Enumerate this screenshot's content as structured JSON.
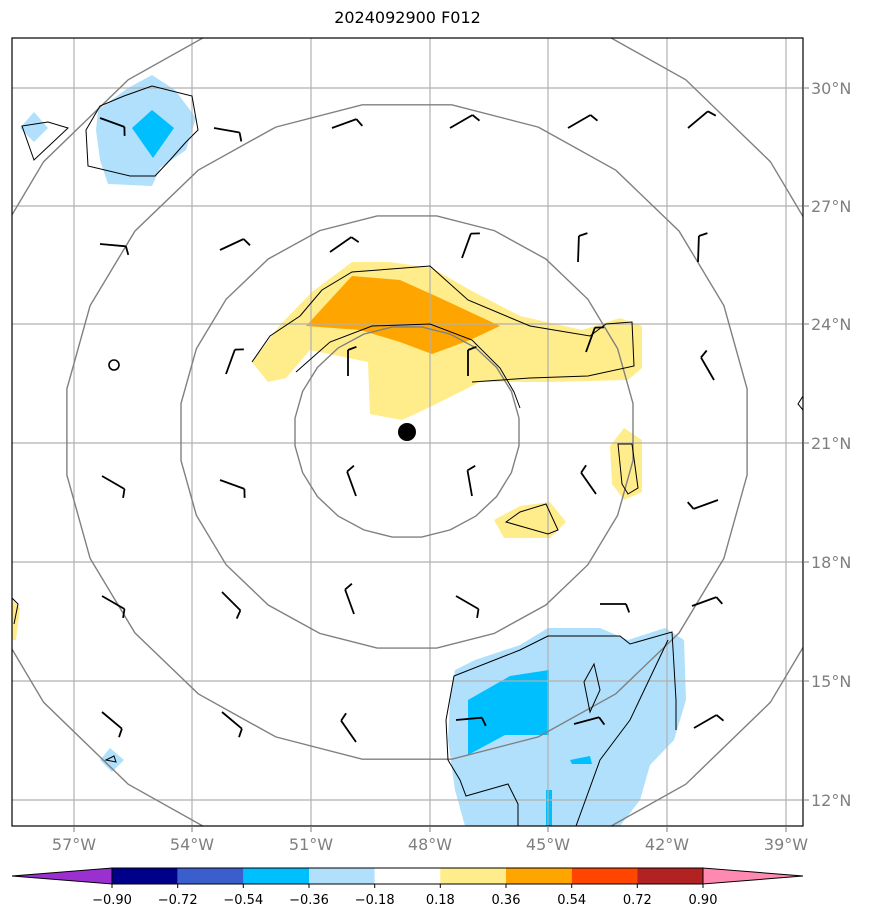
{
  "title": "2024092900 F012",
  "lon_labels": [
    "57°W",
    "54°W",
    "51°W",
    "48°W",
    "45°W",
    "42°W",
    "39°W"
  ],
  "lat_labels": [
    "30°N",
    "27°N",
    "24°N",
    "21°N",
    "18°N",
    "15°N",
    "12°N"
  ],
  "colorbar": {
    "ticks": [
      "−0.90",
      "−0.72",
      "−0.54",
      "−0.36",
      "−0.18",
      "0.18",
      "0.36",
      "0.54",
      "0.72",
      "0.90"
    ],
    "colors": [
      "#9b30d0",
      "#00008b",
      "#3a5fcd",
      "#00bfff",
      "#b0e0fc",
      "#ffffff",
      "#ffec8b",
      "#ffa500",
      "#ff4500",
      "#b22222",
      "#ff89b0"
    ]
  },
  "fill_colors": {
    "light_blue": "#b0e0fc",
    "blue": "#00bfff",
    "light_yellow": "#ffec8b",
    "orange": "#ffa500"
  },
  "center_marker": {
    "lon": -48.7,
    "lat": 21.3
  },
  "icons": [
    "wind-barb-icon",
    "storm-center-icon"
  ]
}
